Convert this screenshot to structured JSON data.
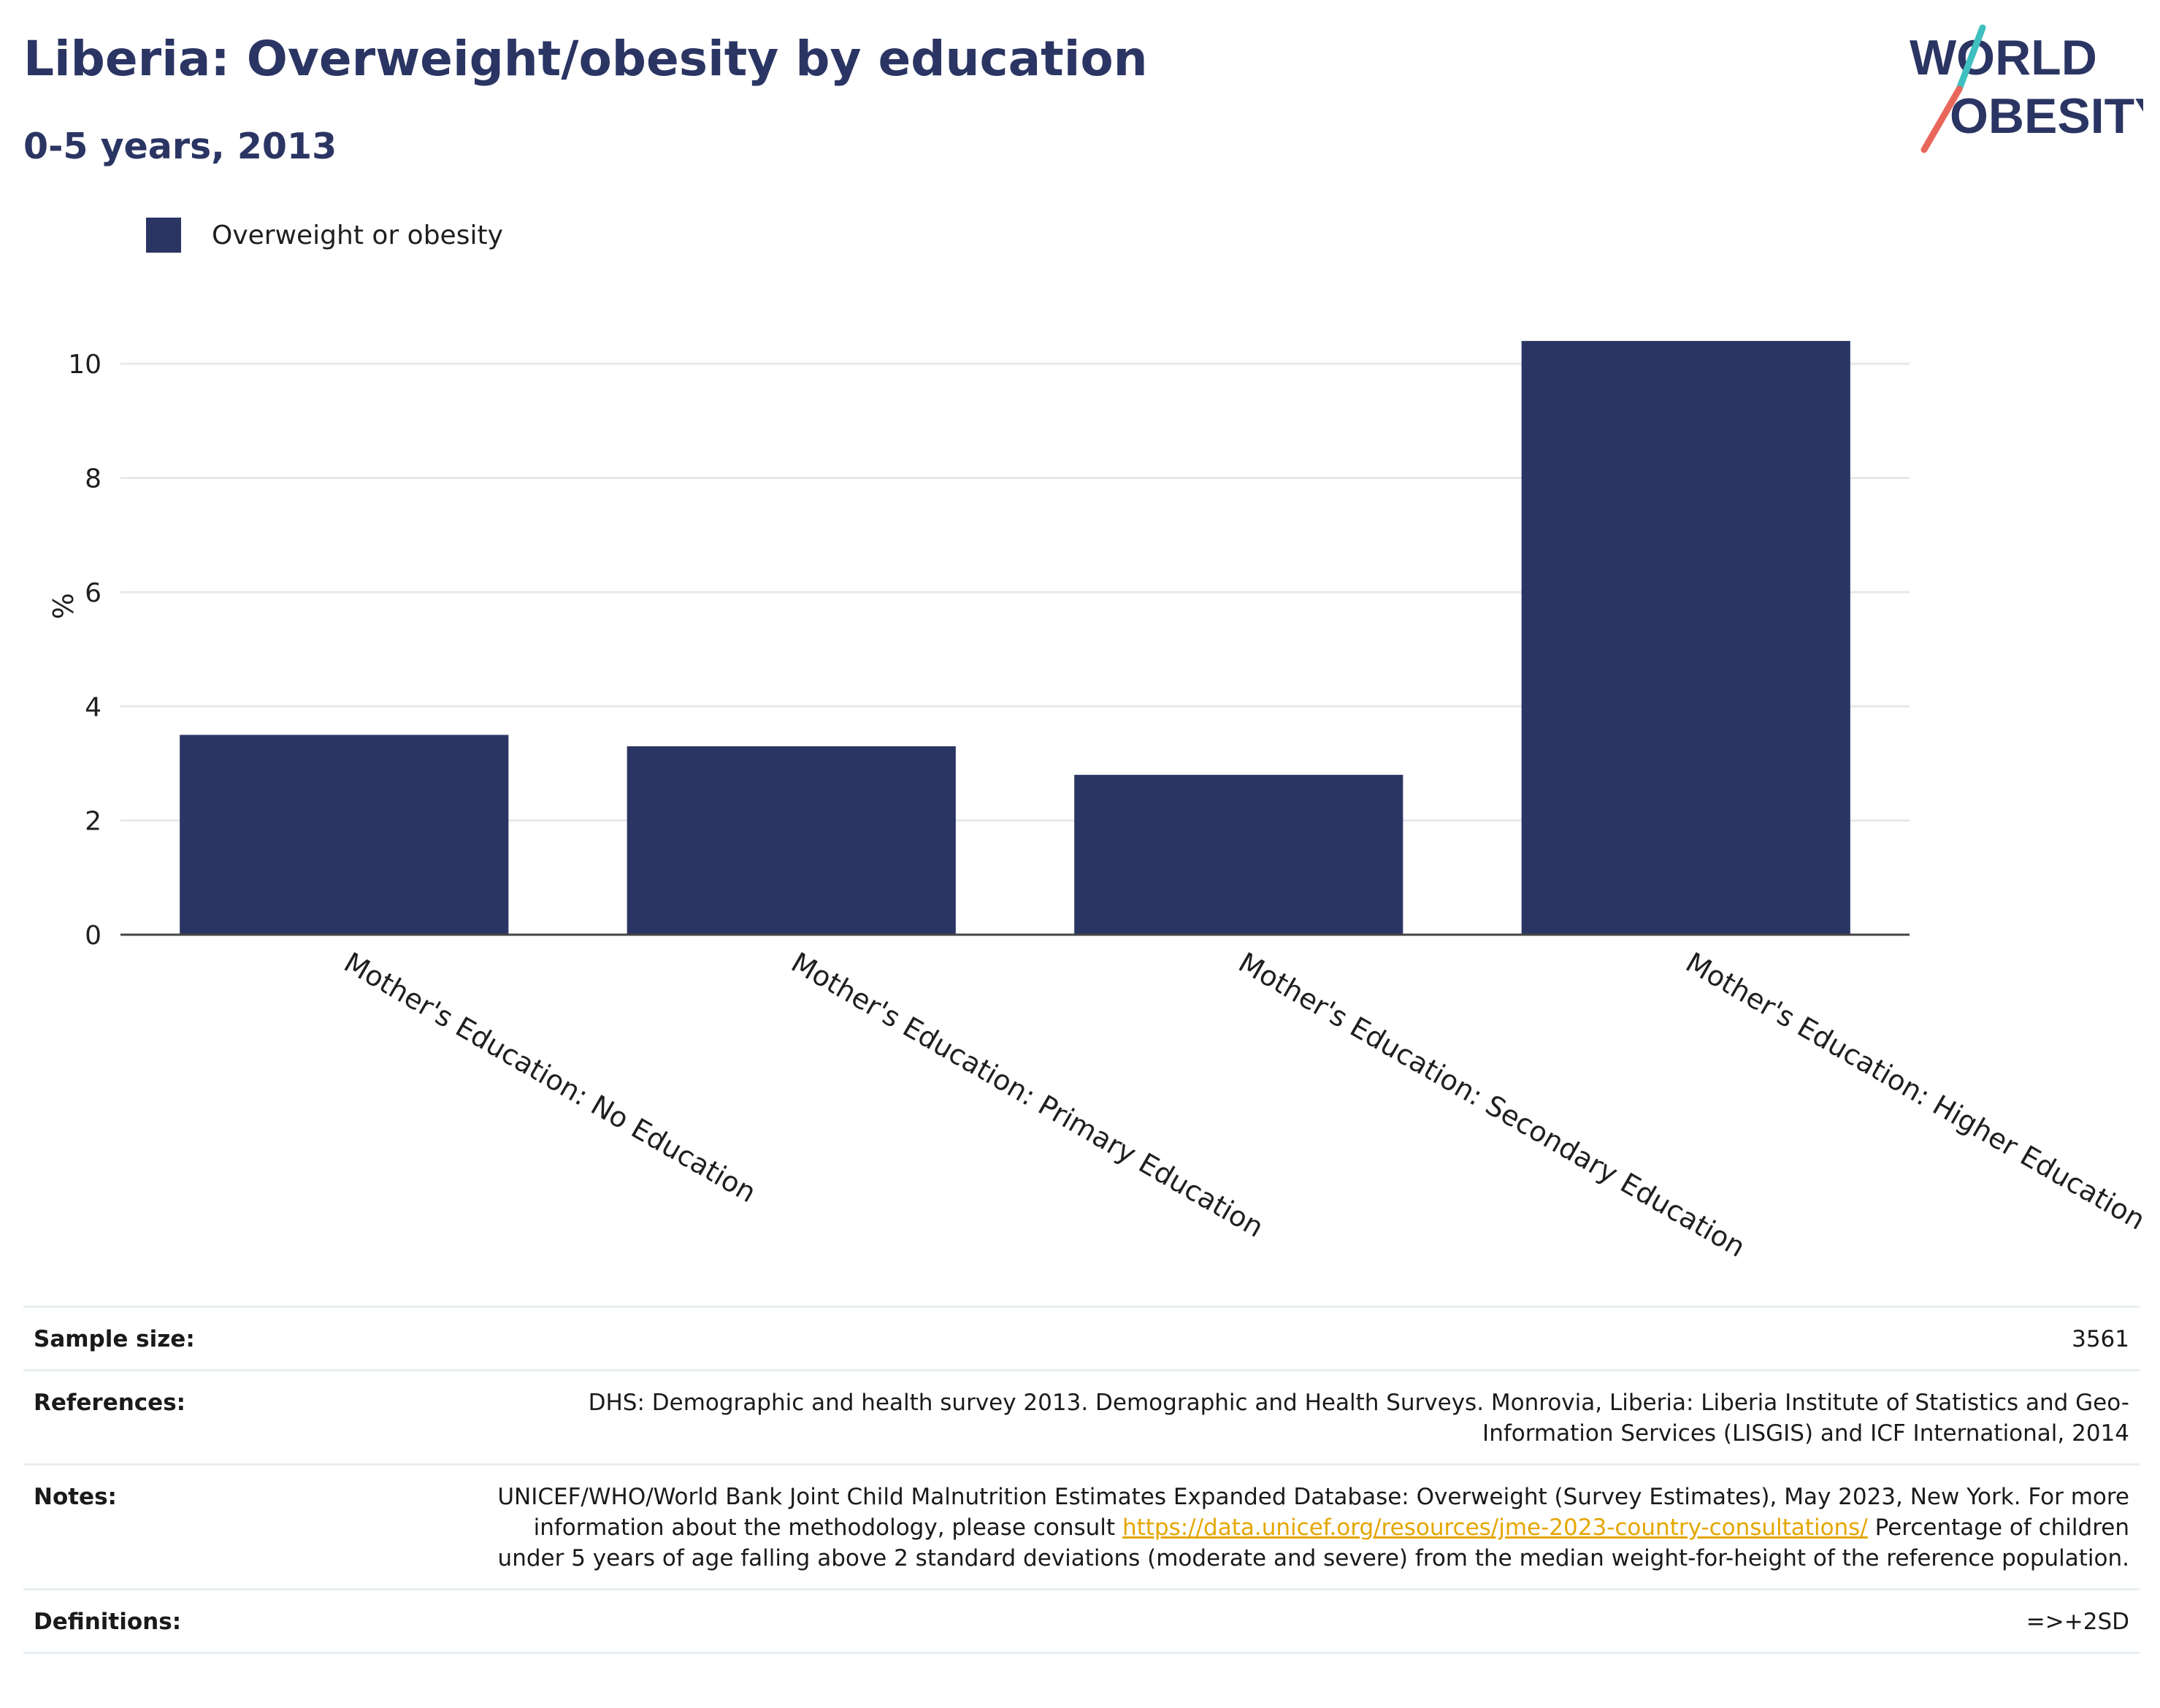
{
  "header": {
    "title": "Liberia: Overweight/obesity by education",
    "subtitle": "0-5 years, 2013"
  },
  "logo": {
    "line1": "WORLD",
    "line2": "OBESITY"
  },
  "colors": {
    "bar": "#2b3563",
    "grid": "#e6e9ec",
    "axis": "#444444",
    "title": "#2b3563",
    "link": "#e4a600"
  },
  "chart_data": {
    "type": "bar",
    "categories": [
      "Mother's Education: No Education",
      "Mother's Education: Primary Education",
      "Mother's Education: Secondary Education",
      "Mother's Education: Higher Education"
    ],
    "series": [
      {
        "name": "Overweight or obesity",
        "values": [
          3.5,
          3.3,
          2.8,
          10.4
        ]
      }
    ],
    "ylabel": "%",
    "ylim": [
      0,
      11
    ],
    "yticks": [
      0,
      2,
      4,
      6,
      8,
      10
    ],
    "grid": true,
    "legend": "top-left"
  },
  "footer": {
    "sample_size_label": "Sample size:",
    "sample_size_value": "3561",
    "references_label": "References:",
    "references_value": "DHS: Demographic and health survey 2013. Demographic and Health Surveys. Monrovia, Liberia: Liberia Institute of Statistics and Geo-Information Services (LISGIS) and ICF International, 2014",
    "notes_label": "Notes:",
    "notes_text1": "UNICEF/WHO/World Bank Joint Child Malnutrition Estimates Expanded Database: Overweight (Survey Estimates), May 2023, New York. For more information about the methodology, please consult ",
    "notes_link": "https://data.unicef.org/resources/jme-2023-country-consultations/",
    "notes_text2": " Percentage of children under 5 years of age falling above 2 standard deviations (moderate and severe) from the median weight-for-height of the reference population.",
    "definitions_label": "Definitions:",
    "definitions_value": "=>+2SD"
  }
}
